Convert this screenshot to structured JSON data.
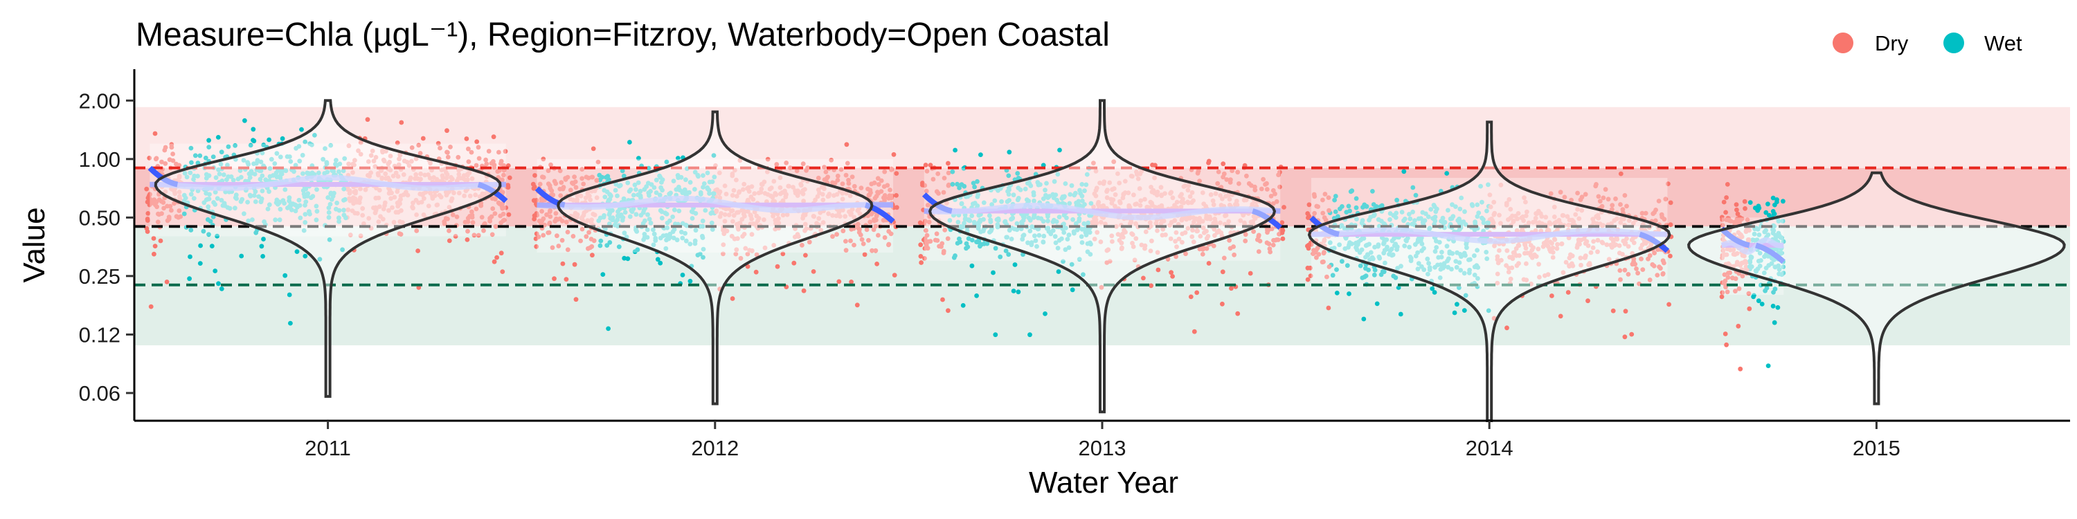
{
  "chart_data": {
    "type": "scatter",
    "title": "Measure=Chla (µgL⁻¹), Region=Fitzroy, Waterbody=Open Coastal",
    "xlabel": "Water Year",
    "ylabel": "Value",
    "y_scale": "log",
    "ylim": [
      0.045,
      2.9
    ],
    "y_ticks": [
      {
        "value": 2.0,
        "label": "2.00"
      },
      {
        "value": 1.0,
        "label": "1.00"
      },
      {
        "value": 0.5,
        "label": "0.50"
      },
      {
        "value": 0.25,
        "label": "0.25"
      },
      {
        "value": 0.125,
        "label": "0.12"
      },
      {
        "value": 0.0625,
        "label": "0.06"
      }
    ],
    "categories": [
      "2011",
      "2012",
      "2013",
      "2014",
      "2015"
    ],
    "legend": {
      "position": "top-right",
      "entries": [
        {
          "name": "Dry",
          "color": "#F8766D"
        },
        {
          "name": "Wet",
          "color": "#00BFC4"
        }
      ]
    },
    "guideline_bands": [
      {
        "from": 0.11,
        "to": 0.45,
        "color": "#e1efe9"
      },
      {
        "from": 0.45,
        "to": 0.9,
        "color": "#f7c3c3"
      },
      {
        "from": 0.9,
        "to": 1.85,
        "color": "#fce7e7"
      }
    ],
    "reference_lines": [
      {
        "value": 0.9,
        "color": "#e8271f"
      },
      {
        "value": 0.45,
        "color": "#111111"
      },
      {
        "value": 0.225,
        "color": "#0b6b4d"
      }
    ],
    "dry_color": "#F8766D",
    "wet_color": "#00BFC4",
    "years": [
      {
        "year": "2011",
        "median": 0.74,
        "low": 0.06,
        "high": 2.0,
        "ribbon_low": 0.4,
        "ribbon_high": 1.2,
        "wet_start": 0.1,
        "wet_end": 0.55,
        "violin_width": 0.44
      },
      {
        "year": "2012",
        "median": 0.58,
        "low": 0.055,
        "high": 1.75,
        "ribbon_low": 0.33,
        "ribbon_high": 1.0,
        "wet_start": 0.18,
        "wet_end": 0.5,
        "violin_width": 0.4
      },
      {
        "year": "2013",
        "median": 0.54,
        "low": 0.05,
        "high": 2.0,
        "ribbon_low": 0.3,
        "ribbon_high": 0.9,
        "wet_start": 0.08,
        "wet_end": 0.47,
        "violin_width": 0.44
      },
      {
        "year": "2014",
        "median": 0.41,
        "low": 0.045,
        "high": 1.55,
        "ribbon_low": 0.22,
        "ribbon_high": 0.8,
        "wet_start": 0.06,
        "wet_end": 0.5,
        "violin_width": 0.46
      },
      {
        "year": "2015",
        "median": 0.36,
        "low": 0.055,
        "high": 0.85,
        "ribbon_low": 0.2,
        "ribbon_high": 0.5,
        "wet_start": 0.45,
        "wet_end": 1.0,
        "violin_width": 0.48
      }
    ]
  }
}
